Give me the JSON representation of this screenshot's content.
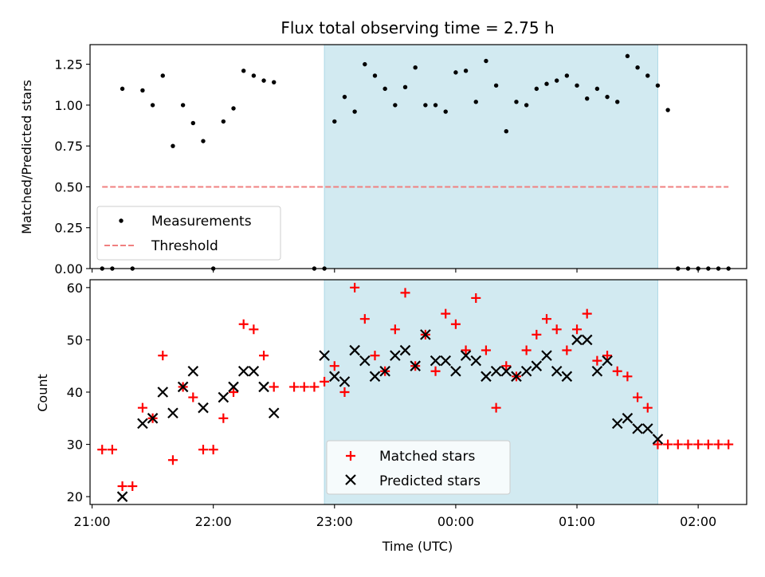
{
  "figure": {
    "title": "Flux total observing time = 2.75 h"
  },
  "chart_data": [
    {
      "type": "scatter",
      "title": "Flux total observing time = 2.75 h",
      "xlabel": "",
      "ylabel": "Matched/Predicted stars",
      "x_unit": "UTC time, hours after 21:00",
      "xlim": [
        "20:59",
        "02:24"
      ],
      "ylim": [
        0,
        1.37
      ],
      "yticks": [
        "0.00",
        "0.25",
        "0.50",
        "0.75",
        "1.00",
        "1.25"
      ],
      "grid": false,
      "legend_position": "lower-left",
      "highlight_span": {
        "x_start": "22:55",
        "x_end": "01:40",
        "color": "#add8e6"
      },
      "series": [
        {
          "name": "Measurements",
          "color": "#000000",
          "marker": "dot",
          "points": [
            [
              "21:05",
              0
            ],
            [
              "21:10",
              0
            ],
            [
              "21:15",
              1.1
            ],
            [
              "21:20",
              0
            ],
            [
              "21:25",
              1.09
            ],
            [
              "21:30",
              1.0
            ],
            [
              "21:35",
              1.18
            ],
            [
              "21:40",
              0.75
            ],
            [
              "21:45",
              1.0
            ],
            [
              "21:50",
              0.89
            ],
            [
              "21:55",
              0.78
            ],
            [
              "22:00",
              0
            ],
            [
              "22:05",
              0.9
            ],
            [
              "22:10",
              0.98
            ],
            [
              "22:15",
              1.21
            ],
            [
              "22:20",
              1.18
            ],
            [
              "22:25",
              1.15
            ],
            [
              "22:30",
              1.14
            ],
            [
              "22:50",
              0
            ],
            [
              "22:55",
              0
            ],
            [
              "23:00",
              0.9
            ],
            [
              "23:05",
              1.05
            ],
            [
              "23:10",
              0.96
            ],
            [
              "23:15",
              1.25
            ],
            [
              "23:20",
              1.18
            ],
            [
              "23:25",
              1.1
            ],
            [
              "23:30",
              1.0
            ],
            [
              "23:35",
              1.11
            ],
            [
              "23:40",
              1.23
            ],
            [
              "23:45",
              1.0
            ],
            [
              "23:50",
              1.0
            ],
            [
              "23:55",
              0.96
            ],
            [
              "00:00",
              1.2
            ],
            [
              "00:05",
              1.21
            ],
            [
              "00:10",
              1.02
            ],
            [
              "00:15",
              1.27
            ],
            [
              "00:20",
              1.12
            ],
            [
              "00:25",
              0.84
            ],
            [
              "00:30",
              1.02
            ],
            [
              "00:35",
              1.0
            ],
            [
              "00:40",
              1.1
            ],
            [
              "00:45",
              1.13
            ],
            [
              "00:50",
              1.15
            ],
            [
              "00:55",
              1.18
            ],
            [
              "01:00",
              1.12
            ],
            [
              "01:05",
              1.04
            ],
            [
              "01:10",
              1.1
            ],
            [
              "01:15",
              1.05
            ],
            [
              "01:20",
              1.02
            ],
            [
              "01:25",
              1.3
            ],
            [
              "01:30",
              1.23
            ],
            [
              "01:35",
              1.18
            ],
            [
              "01:40",
              1.12
            ],
            [
              "01:45",
              0.97
            ],
            [
              "01:50",
              0
            ],
            [
              "01:55",
              0
            ],
            [
              "02:00",
              0
            ],
            [
              "02:05",
              0
            ],
            [
              "02:10",
              0
            ],
            [
              "02:15",
              0
            ]
          ]
        },
        {
          "name": "Threshold",
          "color": "#f08080",
          "style": "dashed",
          "points": [
            [
              "21:05",
              0.5
            ],
            [
              "02:15",
              0.5
            ]
          ]
        }
      ]
    },
    {
      "type": "scatter",
      "title": "",
      "xlabel": "Time (UTC)",
      "ylabel": "Count",
      "x_unit": "UTC time, hours after 21:00",
      "xlim": [
        "20:59",
        "02:24"
      ],
      "ylim": [
        18.5,
        61.5
      ],
      "xticks": [
        "21:00",
        "22:00",
        "23:00",
        "00:00",
        "01:00",
        "02:00"
      ],
      "yticks": [
        "20",
        "30",
        "40",
        "50",
        "60"
      ],
      "grid": false,
      "legend_position": "lower-center",
      "highlight_span": {
        "x_start": "22:55",
        "x_end": "01:40",
        "color": "#add8e6"
      },
      "series": [
        {
          "name": "Matched stars",
          "color": "#ff0000",
          "marker": "plus",
          "points": [
            [
              "21:05",
              29
            ],
            [
              "21:10",
              29
            ],
            [
              "21:15",
              22
            ],
            [
              "21:20",
              22
            ],
            [
              "21:25",
              37
            ],
            [
              "21:30",
              35
            ],
            [
              "21:35",
              47
            ],
            [
              "21:40",
              27
            ],
            [
              "21:45",
              41
            ],
            [
              "21:50",
              39
            ],
            [
              "21:55",
              29
            ],
            [
              "22:00",
              29
            ],
            [
              "22:05",
              35
            ],
            [
              "22:10",
              40
            ],
            [
              "22:15",
              53
            ],
            [
              "22:20",
              52
            ],
            [
              "22:25",
              47
            ],
            [
              "22:30",
              41
            ],
            [
              "22:40",
              41
            ],
            [
              "22:45",
              41
            ],
            [
              "22:50",
              41
            ],
            [
              "22:55",
              42
            ],
            [
              "23:00",
              45
            ],
            [
              "23:05",
              40
            ],
            [
              "23:10",
              60
            ],
            [
              "23:15",
              54
            ],
            [
              "23:20",
              47
            ],
            [
              "23:25",
              44
            ],
            [
              "23:30",
              52
            ],
            [
              "23:35",
              59
            ],
            [
              "23:40",
              45
            ],
            [
              "23:45",
              51
            ],
            [
              "23:50",
              44
            ],
            [
              "23:55",
              55
            ],
            [
              "00:00",
              53
            ],
            [
              "00:05",
              48
            ],
            [
              "00:10",
              58
            ],
            [
              "00:15",
              48
            ],
            [
              "00:20",
              37
            ],
            [
              "00:25",
              45
            ],
            [
              "00:30",
              43
            ],
            [
              "00:35",
              48
            ],
            [
              "00:40",
              51
            ],
            [
              "00:45",
              54
            ],
            [
              "00:50",
              52
            ],
            [
              "00:55",
              48
            ],
            [
              "01:00",
              52
            ],
            [
              "01:05",
              55
            ],
            [
              "01:10",
              46
            ],
            [
              "01:15",
              47
            ],
            [
              "01:20",
              44
            ],
            [
              "01:25",
              43
            ],
            [
              "01:30",
              39
            ],
            [
              "01:35",
              37
            ],
            [
              "01:40",
              30
            ],
            [
              "01:45",
              30
            ],
            [
              "01:50",
              30
            ],
            [
              "01:55",
              30
            ],
            [
              "02:00",
              30
            ],
            [
              "02:05",
              30
            ],
            [
              "02:10",
              30
            ],
            [
              "02:15",
              30
            ]
          ]
        },
        {
          "name": "Predicted stars",
          "color": "#000000",
          "marker": "x",
          "points": [
            [
              "21:15",
              20
            ],
            [
              "21:25",
              34
            ],
            [
              "21:30",
              35
            ],
            [
              "21:35",
              40
            ],
            [
              "21:40",
              36
            ],
            [
              "21:45",
              41
            ],
            [
              "21:50",
              44
            ],
            [
              "21:55",
              37
            ],
            [
              "22:05",
              39
            ],
            [
              "22:10",
              41
            ],
            [
              "22:15",
              44
            ],
            [
              "22:20",
              44
            ],
            [
              "22:25",
              41
            ],
            [
              "22:30",
              36
            ],
            [
              "22:55",
              47
            ],
            [
              "23:00",
              43
            ],
            [
              "23:05",
              42
            ],
            [
              "23:10",
              48
            ],
            [
              "23:15",
              46
            ],
            [
              "23:20",
              43
            ],
            [
              "23:25",
              44
            ],
            [
              "23:30",
              47
            ],
            [
              "23:35",
              48
            ],
            [
              "23:40",
              45
            ],
            [
              "23:45",
              51
            ],
            [
              "23:50",
              46
            ],
            [
              "23:55",
              46
            ],
            [
              "00:00",
              44
            ],
            [
              "00:05",
              47
            ],
            [
              "00:10",
              46
            ],
            [
              "00:15",
              43
            ],
            [
              "00:20",
              44
            ],
            [
              "00:25",
              44
            ],
            [
              "00:30",
              43
            ],
            [
              "00:35",
              44
            ],
            [
              "00:40",
              45
            ],
            [
              "00:45",
              47
            ],
            [
              "00:50",
              44
            ],
            [
              "00:55",
              43
            ],
            [
              "01:00",
              50
            ],
            [
              "01:05",
              50
            ],
            [
              "01:10",
              44
            ],
            [
              "01:15",
              46
            ],
            [
              "01:20",
              34
            ],
            [
              "01:25",
              35
            ],
            [
              "01:30",
              33
            ],
            [
              "01:35",
              33
            ],
            [
              "01:40",
              31
            ]
          ]
        }
      ]
    }
  ]
}
